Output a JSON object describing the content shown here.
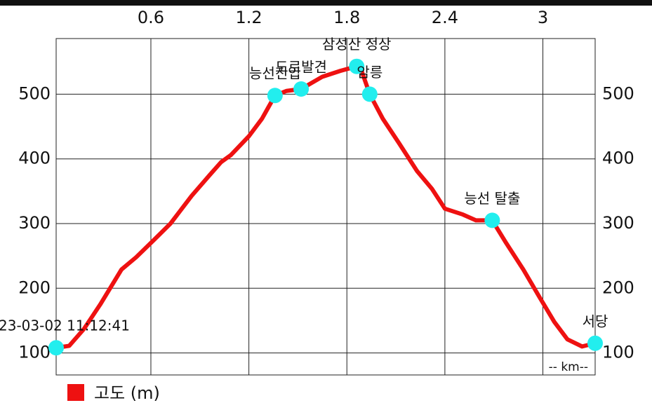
{
  "chart_data": {
    "type": "line",
    "x_unit_label": "-- km--",
    "xlim": [
      0.02,
      3.32
    ],
    "xticks": [
      0.6,
      1.2,
      1.8,
      2.4,
      3.0
    ],
    "ylim": [
      66,
      586
    ],
    "yticks": [
      100,
      200,
      300,
      400,
      500
    ],
    "grid": true,
    "legend": "bottom-left",
    "series": [
      {
        "name": "고도 (m)",
        "color": "#ee1111",
        "x": [
          0.02,
          0.1,
          0.19,
          0.29,
          0.42,
          0.51,
          0.62,
          0.72,
          0.85,
          0.96,
          1.03,
          1.09,
          1.2,
          1.28,
          1.36,
          1.43,
          1.52,
          1.65,
          1.76,
          1.86,
          1.89,
          1.94,
          2.02,
          2.12,
          2.23,
          2.32,
          2.4,
          2.51,
          2.59,
          2.69,
          2.77,
          2.88,
          2.98,
          3.07,
          3.15,
          3.24,
          3.32
        ],
        "values": [
          108,
          111,
          137,
          175,
          229,
          248,
          275,
          300,
          343,
          375,
          395,
          406,
          435,
          462,
          498,
          505,
          508,
          527,
          536,
          543,
          536,
          500,
          462,
          424,
          381,
          354,
          323,
          314,
          305,
          305,
          272,
          229,
          186,
          148,
          121,
          110,
          115
        ]
      }
    ],
    "waypoints": {
      "color": "#22eeee",
      "names": [
        "23-03-02 11:12:41",
        "능선진입",
        "도로발견",
        "삼성산 정상",
        "암릉",
        "능선 탈출",
        "서당"
      ],
      "x": [
        0.02,
        1.36,
        1.52,
        1.86,
        1.94,
        2.69,
        3.32
      ],
      "values": [
        108,
        498,
        508,
        543,
        500,
        305,
        115
      ]
    }
  }
}
